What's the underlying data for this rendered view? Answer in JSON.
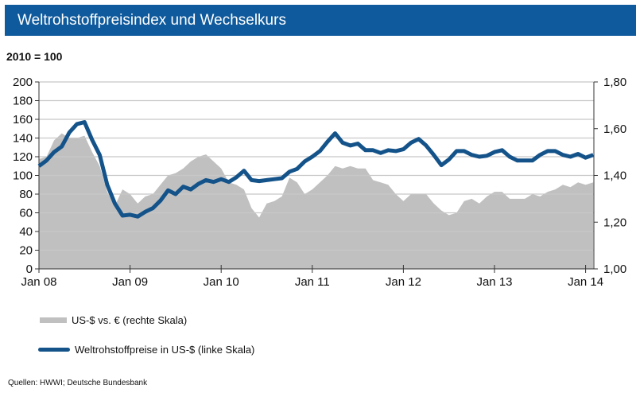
{
  "header": {
    "title": "Weltrohstoffpreisindex  und Wechselkurs",
    "subtitle": "2010 = 100"
  },
  "colors": {
    "title_bar": "#0f5a9c",
    "index_line": "#14538a",
    "fx_area": "#c0c0c0",
    "grid": "#c8c8c8"
  },
  "chart_data": {
    "type": "line+area",
    "x_tick_labels": [
      "Jan 08",
      "Jan 09",
      "Jan 10",
      "Jan 11",
      "Jan 12",
      "Jan 13",
      "Jan 14"
    ],
    "x_start": "Jan 2008",
    "x_frequency": "monthly",
    "left_axis": {
      "ylim": [
        0,
        200
      ],
      "ticks": [
        "0",
        "20",
        "40",
        "60",
        "80",
        "100",
        "120",
        "140",
        "160",
        "180",
        "200"
      ]
    },
    "right_axis": {
      "ylim": [
        1.0,
        1.8
      ],
      "ticks": [
        "1,00",
        "1,20",
        "1,40",
        "1,60",
        "1,80"
      ]
    },
    "grid": true,
    "legend_position": "bottom",
    "series": [
      {
        "name": "US-$ vs. € (rechte Skala)",
        "type": "area",
        "axis": "right",
        "values": [
          1.47,
          1.48,
          1.55,
          1.58,
          1.56,
          1.56,
          1.57,
          1.5,
          1.44,
          1.33,
          1.27,
          1.34,
          1.32,
          1.28,
          1.31,
          1.32,
          1.36,
          1.4,
          1.41,
          1.43,
          1.46,
          1.48,
          1.49,
          1.46,
          1.43,
          1.37,
          1.36,
          1.34,
          1.26,
          1.22,
          1.28,
          1.29,
          1.31,
          1.39,
          1.37,
          1.32,
          1.34,
          1.37,
          1.4,
          1.44,
          1.43,
          1.44,
          1.43,
          1.43,
          1.38,
          1.37,
          1.36,
          1.32,
          1.29,
          1.32,
          1.32,
          1.32,
          1.28,
          1.25,
          1.23,
          1.24,
          1.29,
          1.3,
          1.28,
          1.31,
          1.33,
          1.33,
          1.3,
          1.3,
          1.3,
          1.32,
          1.31,
          1.33,
          1.34,
          1.36,
          1.35,
          1.37,
          1.36,
          1.37
        ]
      },
      {
        "name": "Weltrohstoffpreise in US-$ (linke Skala)",
        "type": "line",
        "axis": "left",
        "values": [
          110,
          116,
          125,
          131,
          146,
          155,
          157,
          138,
          122,
          90,
          70,
          57,
          58,
          56,
          61,
          65,
          73,
          84,
          80,
          88,
          85,
          91,
          95,
          93,
          96,
          93,
          98,
          105,
          95,
          94,
          95,
          96,
          97,
          104,
          107,
          115,
          120,
          126,
          136,
          145,
          135,
          132,
          134,
          127,
          127,
          124,
          127,
          126,
          128,
          135,
          139,
          132,
          122,
          111,
          117,
          126,
          126,
          122,
          120,
          121,
          125,
          127,
          120,
          116,
          116,
          116,
          122,
          126,
          126,
          122,
          120,
          123,
          119,
          122
        ]
      }
    ]
  },
  "source": "Quellen:  HWWI; Deutsche  Bundesbank"
}
